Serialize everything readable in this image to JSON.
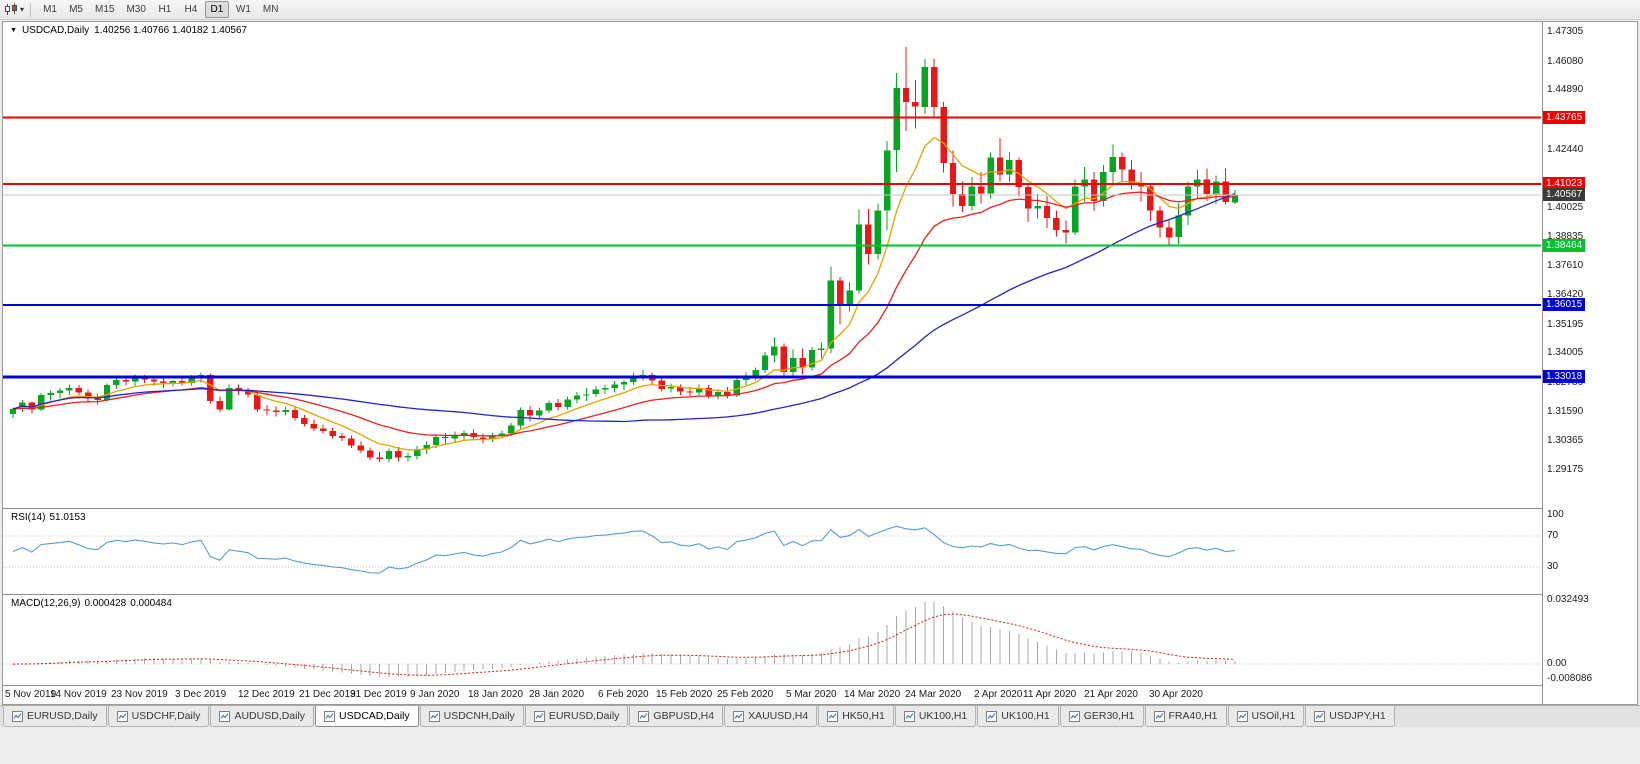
{
  "toolbar": {
    "dropdown_glyph": "▾",
    "periods": [
      "M1",
      "M5",
      "M15",
      "M30",
      "H1",
      "H4",
      "D1",
      "W1",
      "MN"
    ],
    "active_period": "D1"
  },
  "chart_header": {
    "marker": "▼",
    "symbol": "USDCAD,Daily",
    "ohlc": "1.40256 1.40766 1.40182 1.40567"
  },
  "chart_data": {
    "type": "candlestick",
    "symbol": "USDCAD",
    "timeframe": "Daily",
    "last_bar": {
      "open": 1.40256,
      "high": 1.40766,
      "low": 1.40182,
      "close": 1.40567
    },
    "ylim": [
      1.27603,
      1.47719
    ],
    "y_ticks": [
      "1.47305",
      "1.46080",
      "1.44890",
      "1.42440",
      "1.40025",
      "1.38835",
      "1.37610",
      "1.36420",
      "1.35195",
      "1.34005",
      "1.32780",
      "1.31590",
      "1.30365",
      "1.29175"
    ],
    "x_labels": [
      {
        "text": "5 Nov 2019",
        "i": 0
      },
      {
        "text": "14 Nov 2019",
        "i": 7
      },
      {
        "text": "23 Nov 2019",
        "i": 13.5
      },
      {
        "text": "3 Dec 2019",
        "i": 20
      },
      {
        "text": "12 Dec 2019",
        "i": 27
      },
      {
        "text": "21 Dec 2019",
        "i": 33.5
      },
      {
        "text": "31 Dec 2019",
        "i": 39
      },
      {
        "text": "9 Jan 2020",
        "i": 45
      },
      {
        "text": "18 Jan 2020",
        "i": 51.5
      },
      {
        "text": "28 Jan 2020",
        "i": 58
      },
      {
        "text": "6 Feb 2020",
        "i": 65
      },
      {
        "text": "15 Feb 2020",
        "i": 71.5
      },
      {
        "text": "25 Feb 2020",
        "i": 78
      },
      {
        "text": "5 Mar 2020",
        "i": 85
      },
      {
        "text": "14 Mar 2020",
        "i": 91.5
      },
      {
        "text": "24 Mar 2020",
        "i": 98
      },
      {
        "text": "2 Apr 2020",
        "i": 105
      },
      {
        "text": "11 Apr 2020",
        "i": 110.5
      },
      {
        "text": "21 Apr 2020",
        "i": 117
      },
      {
        "text": "30 Apr 2020",
        "i": 124
      }
    ],
    "hlines": [
      {
        "price": 1.43765,
        "label": "1.43765",
        "color": "#ee0000",
        "width": 2
      },
      {
        "price": 1.41023,
        "label": "1.41023",
        "color": "#ee0000",
        "width": 2
      },
      {
        "price": 1.40567,
        "label": "1.40567",
        "color": "#c4c4c4",
        "width": 1,
        "badge_bg": "#3a3a3a"
      },
      {
        "price": 1.38464,
        "label": "1.38464",
        "color": "#00c22e",
        "width": 2
      },
      {
        "price": 1.36015,
        "label": "1.36015",
        "color": "#0000d8",
        "width": 2
      },
      {
        "price": 1.33018,
        "label": "1.33018",
        "color": "#0000d8",
        "width": 3
      }
    ],
    "moving_averages": [
      {
        "type": "ema",
        "period": 8,
        "color": "#e8a200"
      },
      {
        "type": "ema",
        "period": 21,
        "color": "#f02020"
      },
      {
        "type": "sma",
        "period": 45,
        "color": "#2424cc"
      }
    ],
    "candle_colors": {
      "up": "#0aa424",
      "down": "#e81818"
    },
    "candles": [
      [
        1.315,
        1.3177,
        1.3133,
        1.317
      ],
      [
        1.317,
        1.3207,
        1.3158,
        1.3196
      ],
      [
        1.3196,
        1.3202,
        1.3152,
        1.3168
      ],
      [
        1.3168,
        1.3237,
        1.3162,
        1.3228
      ],
      [
        1.3228,
        1.3247,
        1.3206,
        1.3236
      ],
      [
        1.3236,
        1.3256,
        1.3214,
        1.3246
      ],
      [
        1.3246,
        1.3272,
        1.3228,
        1.3258
      ],
      [
        1.3258,
        1.327,
        1.3228,
        1.3238
      ],
      [
        1.3238,
        1.325,
        1.3198,
        1.3214
      ],
      [
        1.3214,
        1.3232,
        1.3188,
        1.3208
      ],
      [
        1.3208,
        1.3276,
        1.3202,
        1.3269
      ],
      [
        1.3269,
        1.3301,
        1.3252,
        1.3291
      ],
      [
        1.3291,
        1.3307,
        1.3268,
        1.3283
      ],
      [
        1.3283,
        1.3312,
        1.3263,
        1.3301
      ],
      [
        1.3301,
        1.3311,
        1.3278,
        1.3293
      ],
      [
        1.3293,
        1.3304,
        1.3268,
        1.3284
      ],
      [
        1.3284,
        1.3296,
        1.3258,
        1.3278
      ],
      [
        1.3278,
        1.3291,
        1.3263,
        1.3286
      ],
      [
        1.3286,
        1.3306,
        1.3268,
        1.3278
      ],
      [
        1.3278,
        1.3311,
        1.3268,
        1.3299
      ],
      [
        1.3299,
        1.3321,
        1.3279,
        1.3311
      ],
      [
        1.3311,
        1.3318,
        1.3193,
        1.3204
      ],
      [
        1.3204,
        1.3221,
        1.3158,
        1.3169
      ],
      [
        1.3169,
        1.3272,
        1.3163,
        1.3257
      ],
      [
        1.3257,
        1.3271,
        1.3228,
        1.3244
      ],
      [
        1.3244,
        1.3256,
        1.3218,
        1.3229
      ],
      [
        1.3229,
        1.3244,
        1.3158,
        1.3169
      ],
      [
        1.3169,
        1.3187,
        1.3143,
        1.3164
      ],
      [
        1.3164,
        1.3181,
        1.3139,
        1.3158
      ],
      [
        1.3158,
        1.3179,
        1.3143,
        1.3166
      ],
      [
        1.3166,
        1.3176,
        1.3122,
        1.3133
      ],
      [
        1.3133,
        1.3146,
        1.3098,
        1.3109
      ],
      [
        1.3109,
        1.3126,
        1.3078,
        1.3089
      ],
      [
        1.3089,
        1.3106,
        1.3068,
        1.3079
      ],
      [
        1.3079,
        1.3091,
        1.3048,
        1.3059
      ],
      [
        1.3059,
        1.3071,
        1.3038,
        1.3049
      ],
      [
        1.3049,
        1.3061,
        1.3008,
        1.3019
      ],
      [
        1.3019,
        1.3036,
        1.2988,
        1.2999
      ],
      [
        1.2999,
        1.3011,
        1.2958,
        1.2969
      ],
      [
        1.2969,
        1.2992,
        1.2951,
        1.2964
      ],
      [
        1.2964,
        1.3007,
        1.2949,
        1.2996
      ],
      [
        1.2996,
        1.3012,
        1.2952,
        1.2969
      ],
      [
        1.2969,
        1.2991,
        1.2953,
        1.2976
      ],
      [
        1.2976,
        1.3016,
        1.2961,
        1.3002
      ],
      [
        1.3002,
        1.3036,
        1.2984,
        1.3021
      ],
      [
        1.3021,
        1.3066,
        1.3009,
        1.3054
      ],
      [
        1.3054,
        1.3071,
        1.3028,
        1.3049
      ],
      [
        1.3049,
        1.3076,
        1.3033,
        1.3061
      ],
      [
        1.3061,
        1.3081,
        1.3044,
        1.3071
      ],
      [
        1.3071,
        1.3086,
        1.3039,
        1.3053
      ],
      [
        1.3053,
        1.3069,
        1.3028,
        1.3043
      ],
      [
        1.3043,
        1.3071,
        1.3033,
        1.3059
      ],
      [
        1.3059,
        1.3081,
        1.3048,
        1.3069
      ],
      [
        1.3069,
        1.3112,
        1.3058,
        1.3101
      ],
      [
        1.3101,
        1.3176,
        1.3089,
        1.3166
      ],
      [
        1.3166,
        1.3182,
        1.3119,
        1.3143
      ],
      [
        1.3143,
        1.3176,
        1.3132,
        1.3164
      ],
      [
        1.3164,
        1.3206,
        1.3153,
        1.3194
      ],
      [
        1.3194,
        1.3211,
        1.3163,
        1.3179
      ],
      [
        1.3179,
        1.3221,
        1.3169,
        1.3209
      ],
      [
        1.3209,
        1.3241,
        1.3193,
        1.3226
      ],
      [
        1.3226,
        1.3256,
        1.3203,
        1.3231
      ],
      [
        1.3231,
        1.3266,
        1.3219,
        1.3251
      ],
      [
        1.3251,
        1.3271,
        1.3233,
        1.3256
      ],
      [
        1.3256,
        1.3286,
        1.3239,
        1.3271
      ],
      [
        1.3271,
        1.3291,
        1.3249,
        1.3281
      ],
      [
        1.3281,
        1.3321,
        1.3269,
        1.3306
      ],
      [
        1.3306,
        1.3331,
        1.3289,
        1.3311
      ],
      [
        1.3311,
        1.3321,
        1.3273,
        1.3289
      ],
      [
        1.3289,
        1.3301,
        1.3243,
        1.3254
      ],
      [
        1.3254,
        1.3276,
        1.3238,
        1.3261
      ],
      [
        1.3261,
        1.3271,
        1.3228,
        1.3243
      ],
      [
        1.3243,
        1.3261,
        1.3223,
        1.3239
      ],
      [
        1.3239,
        1.3271,
        1.3229,
        1.3256
      ],
      [
        1.3256,
        1.3269,
        1.3214,
        1.3226
      ],
      [
        1.3226,
        1.3251,
        1.3209,
        1.3241
      ],
      [
        1.3241,
        1.3261,
        1.3214,
        1.3226
      ],
      [
        1.3226,
        1.3306,
        1.3219,
        1.3291
      ],
      [
        1.3291,
        1.3321,
        1.3269,
        1.3306
      ],
      [
        1.3306,
        1.3341,
        1.3289,
        1.3331
      ],
      [
        1.3331,
        1.3406,
        1.3319,
        1.3391
      ],
      [
        1.3391,
        1.3466,
        1.3363,
        1.3429
      ],
      [
        1.3429,
        1.3441,
        1.3308,
        1.3324
      ],
      [
        1.3324,
        1.3416,
        1.3303,
        1.3381
      ],
      [
        1.3381,
        1.3421,
        1.3313,
        1.3341
      ],
      [
        1.3341,
        1.3426,
        1.3329,
        1.3414
      ],
      [
        1.3414,
        1.3446,
        1.3379,
        1.3421
      ],
      [
        1.3421,
        1.3759,
        1.3401,
        1.3701
      ],
      [
        1.3701,
        1.3716,
        1.3519,
        1.3604
      ],
      [
        1.3604,
        1.3696,
        1.3573,
        1.3661
      ],
      [
        1.3661,
        1.3996,
        1.3649,
        1.3934
      ],
      [
        1.3934,
        1.3998,
        1.3769,
        1.3811
      ],
      [
        1.3811,
        1.4021,
        1.3789,
        1.3991
      ],
      [
        1.3991,
        1.4279,
        1.3911,
        1.4241
      ],
      [
        1.4241,
        1.4561,
        1.4151,
        1.4499
      ],
      [
        1.4499,
        1.4668,
        1.4321,
        1.4441
      ],
      [
        1.4441,
        1.4531,
        1.4331,
        1.4421
      ],
      [
        1.4421,
        1.4619,
        1.4391,
        1.4586
      ],
      [
        1.4586,
        1.4621,
        1.4381,
        1.4421
      ],
      [
        1.4421,
        1.4441,
        1.4149,
        1.4189
      ],
      [
        1.4189,
        1.4241,
        1.4009,
        1.4059
      ],
      [
        1.4059,
        1.4111,
        1.3986,
        1.4011
      ],
      [
        1.4011,
        1.4131,
        1.3991,
        1.4091
      ],
      [
        1.4091,
        1.4151,
        1.4021,
        1.4061
      ],
      [
        1.4061,
        1.4231,
        1.4041,
        1.4211
      ],
      [
        1.4211,
        1.4291,
        1.4111,
        1.4141
      ],
      [
        1.4141,
        1.4231,
        1.4109,
        1.4201
      ],
      [
        1.4201,
        1.4211,
        1.4049,
        1.4089
      ],
      [
        1.4089,
        1.4101,
        1.3944,
        1.3999
      ],
      [
        1.3999,
        1.4061,
        1.3959,
        1.4011
      ],
      [
        1.4011,
        1.4051,
        1.3919,
        1.3961
      ],
      [
        1.3961,
        1.3991,
        1.3884,
        1.3911
      ],
      [
        1.3911,
        1.3951,
        1.3855,
        1.3901
      ],
      [
        1.3901,
        1.4121,
        1.3891,
        1.4091
      ],
      [
        1.4091,
        1.4171,
        1.4029,
        1.4121
      ],
      [
        1.4121,
        1.4151,
        1.3989,
        1.4031
      ],
      [
        1.4031,
        1.4181,
        1.4009,
        1.4151
      ],
      [
        1.4151,
        1.4264,
        1.4099,
        1.4214
      ],
      [
        1.4214,
        1.4231,
        1.4109,
        1.4161
      ],
      [
        1.4161,
        1.4201,
        1.4079,
        1.4106
      ],
      [
        1.4106,
        1.4151,
        1.4029,
        1.4091
      ],
      [
        1.4091,
        1.4101,
        1.3949,
        1.3991
      ],
      [
        1.3991,
        1.4011,
        1.3879,
        1.3921
      ],
      [
        1.3921,
        1.3951,
        1.3849,
        1.3881
      ],
      [
        1.3881,
        1.4021,
        1.3854,
        1.3971
      ],
      [
        1.3971,
        1.4111,
        1.3931,
        1.4091
      ],
      [
        1.4091,
        1.4161,
        1.4041,
        1.4121
      ],
      [
        1.4121,
        1.4166,
        1.4031,
        1.4061
      ],
      [
        1.4061,
        1.4136,
        1.4019,
        1.4111
      ],
      [
        1.4111,
        1.4165,
        1.4016,
        1.4026
      ],
      [
        1.40256,
        1.40766,
        1.40182,
        1.40567
      ]
    ],
    "rsi": {
      "label": "RSI(14)",
      "value": "51.0153",
      "period": 14,
      "levels": [
        100,
        70,
        30
      ],
      "color": "#5b9bd5"
    },
    "macd": {
      "label": "MACD(12,26,9)",
      "value_macd": "0.000428",
      "value_signal": "0.000484",
      "fast": 12,
      "slow": 26,
      "signal": 9,
      "hist_color": "#a8a8a8",
      "signal_color": "#e81818",
      "axis_labels": [
        {
          "v": 0.032493,
          "text": "0.032493"
        },
        {
          "v": 0,
          "text": "0.00"
        },
        {
          "v": -0.008086,
          "text": "-0.008086"
        }
      ]
    }
  },
  "tabs": {
    "items": [
      "EURUSD,Daily",
      "USDCHF,Daily",
      "AUDUSD,Daily",
      "USDCAD,Daily",
      "USDCNH,Daily",
      "EURUSD,Daily",
      "GBPUSD,H4",
      "XAUUSD,H4",
      "HK50,H1",
      "UK100,H1",
      "UK100,H1",
      "GER30,H1",
      "FRA40,H1",
      "USOil,H1",
      "USDJPY,H1"
    ],
    "active_index": 3
  }
}
